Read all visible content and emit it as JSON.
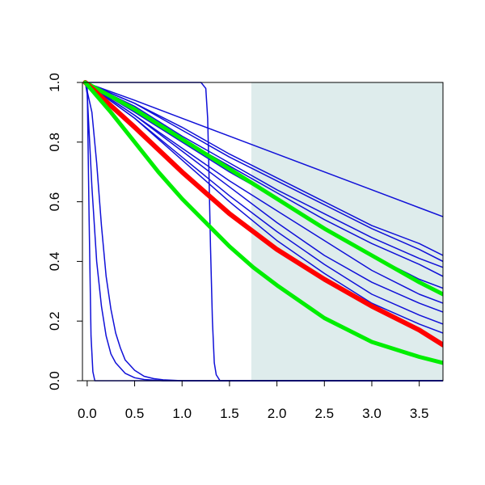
{
  "chart_data": {
    "type": "line",
    "title": "",
    "xlabel": "",
    "ylabel": "",
    "xlim": [
      -0.05,
      3.75
    ],
    "ylim": [
      0.0,
      1.0
    ],
    "x_ticks": [
      0.0,
      0.5,
      1.0,
      1.5,
      2.0,
      2.5,
      3.0,
      3.5
    ],
    "x_tick_labels": [
      "0.0",
      "0.5",
      "1.0",
      "1.5",
      "2.0",
      "2.5",
      "3.0",
      "3.5"
    ],
    "y_ticks": [
      0.0,
      0.2,
      0.4,
      0.6,
      0.8,
      1.0
    ],
    "y_tick_labels": [
      "0.0",
      "0.2",
      "0.4",
      "0.6",
      "0.8",
      "1.0"
    ],
    "grid": false,
    "legend": "none",
    "shaded_region": {
      "x_from": 1.73,
      "x_to": 3.75,
      "color": "#deecec"
    },
    "colors": {
      "blue": "#1010d8",
      "red": "#ff0000",
      "green": "#00ee00",
      "axis": "#000000"
    },
    "series": [
      {
        "color": "blue",
        "width": 1.5,
        "x": [
          -0.03,
          0.0,
          0.02,
          0.04,
          0.06,
          0.08,
          0.12,
          3.75
        ],
        "y": [
          1.0,
          0.99,
          0.55,
          0.15,
          0.03,
          0.0,
          0.0,
          0.0
        ]
      },
      {
        "color": "blue",
        "width": 1.5,
        "x": [
          -0.02,
          0.0,
          0.05,
          0.1,
          0.15,
          0.2,
          0.25,
          0.3,
          0.4,
          0.5,
          0.6,
          0.8,
          3.75
        ],
        "y": [
          1.0,
          0.96,
          0.65,
          0.4,
          0.25,
          0.15,
          0.09,
          0.06,
          0.025,
          0.01,
          0.004,
          0.0,
          0.0
        ]
      },
      {
        "color": "blue",
        "width": 1.5,
        "x": [
          -0.02,
          0.05,
          0.1,
          0.15,
          0.2,
          0.25,
          0.3,
          0.35,
          0.4,
          0.5,
          0.6,
          0.7,
          0.8,
          1.0,
          3.75
        ],
        "y": [
          1.0,
          0.9,
          0.73,
          0.52,
          0.35,
          0.24,
          0.16,
          0.11,
          0.07,
          0.035,
          0.015,
          0.007,
          0.003,
          0.0,
          0.0
        ]
      },
      {
        "color": "blue",
        "width": 1.5,
        "x": [
          -0.02,
          0.0,
          0.1,
          0.5,
          1.0,
          1.2,
          1.25,
          1.27,
          1.28,
          1.3,
          1.32,
          1.34,
          1.36,
          1.4,
          3.75
        ],
        "y": [
          1.0,
          1.0,
          1.0,
          1.0,
          1.0,
          1.0,
          0.98,
          0.88,
          0.75,
          0.45,
          0.2,
          0.06,
          0.02,
          0.0,
          0.0
        ]
      },
      {
        "color": "blue",
        "width": 1.5,
        "x": [
          -0.02,
          0.5,
          1.0,
          1.5,
          2.0,
          2.5,
          3.0,
          3.5,
          3.75
        ],
        "y": [
          1.0,
          0.94,
          0.88,
          0.82,
          0.76,
          0.7,
          0.64,
          0.58,
          0.55
        ]
      },
      {
        "color": "blue",
        "width": 1.5,
        "x": [
          -0.02,
          0.5,
          1.0,
          1.5,
          2.0,
          2.5,
          3.0,
          3.5,
          3.75
        ],
        "y": [
          1.0,
          0.93,
          0.85,
          0.76,
          0.68,
          0.6,
          0.52,
          0.46,
          0.42
        ]
      },
      {
        "color": "blue",
        "width": 1.5,
        "x": [
          -0.02,
          0.5,
          1.0,
          1.5,
          2.0,
          2.5,
          3.0,
          3.5,
          3.75
        ],
        "y": [
          1.0,
          0.93,
          0.84,
          0.75,
          0.67,
          0.59,
          0.51,
          0.44,
          0.4
        ]
      },
      {
        "color": "blue",
        "width": 1.5,
        "x": [
          -0.02,
          0.5,
          1.0,
          1.5,
          2.0,
          2.5,
          3.0,
          3.5,
          3.75
        ],
        "y": [
          1.0,
          0.92,
          0.82,
          0.73,
          0.64,
          0.56,
          0.48,
          0.41,
          0.38
        ]
      },
      {
        "color": "blue",
        "width": 1.5,
        "x": [
          -0.02,
          0.5,
          1.0,
          1.5,
          2.0,
          2.5,
          3.0,
          3.5,
          3.75
        ],
        "y": [
          1.0,
          0.91,
          0.81,
          0.72,
          0.63,
          0.54,
          0.46,
          0.39,
          0.35
        ]
      },
      {
        "color": "blue",
        "width": 1.5,
        "x": [
          -0.02,
          0.5,
          1.0,
          1.5,
          2.0,
          2.5,
          3.0,
          3.5,
          3.75
        ],
        "y": [
          1.0,
          0.9,
          0.8,
          0.7,
          0.61,
          0.51,
          0.42,
          0.34,
          0.31
        ]
      },
      {
        "color": "blue",
        "width": 1.5,
        "x": [
          -0.02,
          0.5,
          1.0,
          1.5,
          2.0,
          2.5,
          3.0,
          3.5,
          3.75
        ],
        "y": [
          1.0,
          0.89,
          0.78,
          0.67,
          0.57,
          0.47,
          0.37,
          0.29,
          0.26
        ]
      },
      {
        "color": "blue",
        "width": 1.5,
        "x": [
          -0.02,
          0.5,
          1.0,
          1.5,
          2.0,
          2.5,
          3.0,
          3.5,
          3.75
        ],
        "y": [
          1.0,
          0.89,
          0.77,
          0.65,
          0.53,
          0.42,
          0.33,
          0.26,
          0.23
        ]
      },
      {
        "color": "blue",
        "width": 1.5,
        "x": [
          -0.02,
          0.5,
          1.0,
          1.5,
          2.0,
          2.5,
          3.0,
          3.5,
          3.75
        ],
        "y": [
          1.0,
          0.88,
          0.75,
          0.62,
          0.5,
          0.39,
          0.29,
          0.22,
          0.19
        ]
      },
      {
        "color": "blue",
        "width": 1.5,
        "x": [
          -0.02,
          0.5,
          1.0,
          1.5,
          2.0,
          2.5,
          3.0,
          3.5,
          3.75
        ],
        "y": [
          1.0,
          0.88,
          0.74,
          0.6,
          0.47,
          0.36,
          0.26,
          0.19,
          0.16
        ]
      },
      {
        "color": "green",
        "width": 5,
        "x": [
          -0.02,
          0.5,
          1.0,
          1.5,
          2.0,
          2.5,
          3.0,
          3.5,
          3.75
        ],
        "y": [
          1.0,
          0.91,
          0.81,
          0.71,
          0.61,
          0.51,
          0.42,
          0.33,
          0.29
        ]
      },
      {
        "color": "red",
        "width": 6,
        "x": [
          -0.02,
          0.5,
          1.0,
          1.5,
          2.0,
          2.5,
          3.0,
          3.5,
          3.75
        ],
        "y": [
          1.0,
          0.85,
          0.7,
          0.56,
          0.44,
          0.34,
          0.25,
          0.17,
          0.12
        ]
      },
      {
        "color": "green",
        "width": 5,
        "x": [
          -0.02,
          0.25,
          0.5,
          0.75,
          1.0,
          1.25,
          1.5,
          1.75,
          2.0,
          2.5,
          3.0,
          3.5,
          3.75
        ],
        "y": [
          1.0,
          0.9,
          0.8,
          0.7,
          0.61,
          0.53,
          0.45,
          0.38,
          0.32,
          0.21,
          0.13,
          0.08,
          0.06
        ]
      }
    ]
  }
}
